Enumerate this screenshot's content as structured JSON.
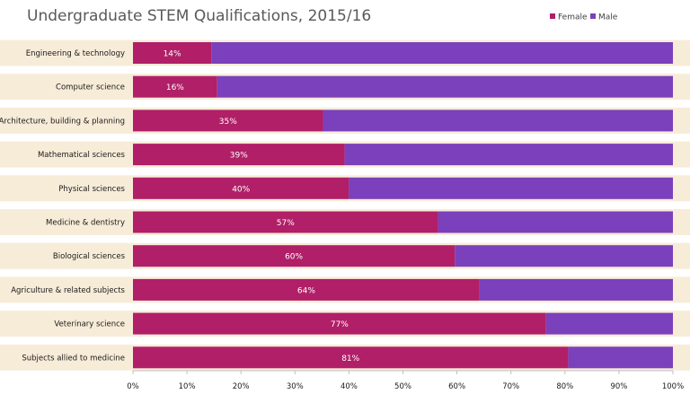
{
  "chart_data": {
    "type": "bar",
    "orientation": "horizontal",
    "stacked": true,
    "title": "Undergraduate STEM Qualifications, 2015/16",
    "categories": [
      "Engineering & technology",
      "Computer science",
      "Architecture, building & planning",
      "Mathematical sciences",
      "Physical sciences",
      "Medicine & dentistry",
      "Biological sciences",
      "Agriculture & related subjects",
      "Veterinary science",
      "Subjects allied to medicine"
    ],
    "series": [
      {
        "name": "Female",
        "color": "#b01f67",
        "values": [
          14.5,
          15.6,
          35.2,
          39.2,
          40.0,
          56.5,
          59.6,
          64.2,
          76.5,
          80.6
        ],
        "labels": [
          "14%",
          "16%",
          "35%",
          "39%",
          "40%",
          "57%",
          "60%",
          "64%",
          "77%",
          "81%"
        ]
      },
      {
        "name": "Male",
        "color": "#7b40bb",
        "values": [
          85.5,
          84.4,
          64.8,
          60.8,
          60.0,
          43.5,
          40.4,
          35.8,
          23.5,
          19.4
        ]
      }
    ],
    "xlim": [
      0,
      100
    ],
    "xticks": [
      "0%",
      "10%",
      "20%",
      "30%",
      "40%",
      "50%",
      "60%",
      "70%",
      "80%",
      "90%",
      "100%"
    ],
    "legend_position": "top-right",
    "grid": false,
    "band_color": "#f7ecd8"
  }
}
